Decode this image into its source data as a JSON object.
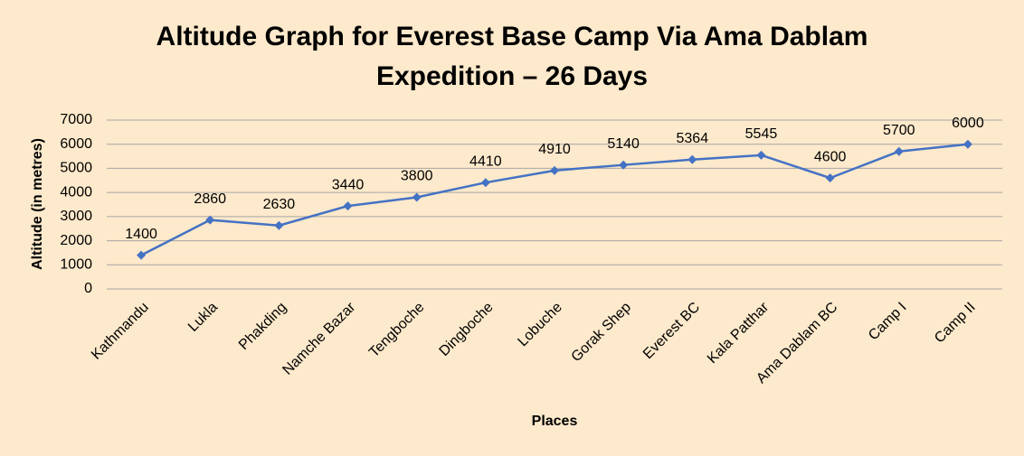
{
  "chart_data": {
    "type": "line",
    "title": [
      "Altitude Graph for Everest Base Camp Via Ama Dablam",
      "Expedition – 26 Days"
    ],
    "x_label": "Places",
    "y_label": "Altitude (in metres)",
    "categories": [
      "Kathmandu",
      "Lukla",
      "Phakding",
      "Namche Bazar",
      "Tengboche",
      "Dingboche",
      "Lobuche",
      "Gorak Shep",
      "Everest BC",
      "Kala Patthar",
      "Ama Dablam BC",
      "Camp I",
      "Camp II"
    ],
    "values": [
      1400,
      2860,
      2630,
      3440,
      3800,
      4410,
      4910,
      5140,
      5364,
      5545,
      4600,
      5700,
      6000
    ],
    "color": "#4472c4",
    "ylim": [
      0,
      7000
    ],
    "yticks": [
      0,
      1000,
      2000,
      3000,
      4000,
      5000,
      6000,
      7000
    ],
    "grid": true
  }
}
